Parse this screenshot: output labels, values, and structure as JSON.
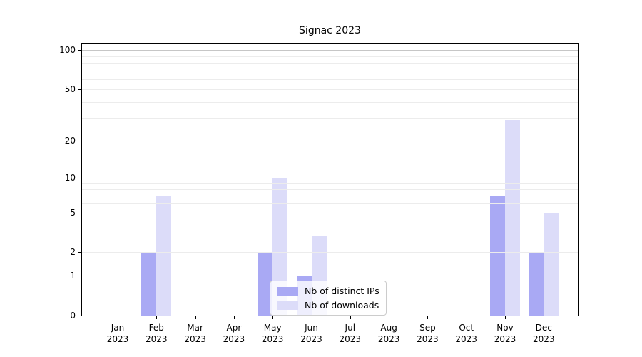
{
  "title": "Signac 2023",
  "chart_data": {
    "type": "bar",
    "title": "Signac 2023",
    "yscale": "log1p",
    "grid": true,
    "categories": [
      "Jan",
      "Feb",
      "Mar",
      "Apr",
      "May",
      "Jun",
      "Jul",
      "Aug",
      "Sep",
      "Oct",
      "Nov",
      "Dec"
    ],
    "tick_year": "2023",
    "series": [
      {
        "name": "Nb of distinct IPs",
        "color": "#a9a9f4",
        "values": [
          0,
          2,
          0,
          0,
          2,
          1,
          0,
          0,
          0,
          0,
          7,
          2
        ]
      },
      {
        "name": "Nb of downloads",
        "color": "#dcdcf9",
        "values": [
          0,
          7,
          0,
          0,
          10,
          3,
          0,
          0,
          0,
          0,
          29,
          5
        ]
      }
    ],
    "y_ticks": [
      0,
      1,
      2,
      5,
      10,
      20,
      50,
      100
    ],
    "y_minor_gridlines": [
      3,
      4,
      6,
      7,
      8,
      9,
      30,
      40,
      60,
      70,
      80,
      90
    ],
    "ylim": [
      0,
      116
    ],
    "legend": {
      "position": "lower center"
    },
    "colors": {
      "major_grid": "#c6c6c6",
      "minor_grid": "#ececec",
      "spine": "#000000"
    }
  }
}
